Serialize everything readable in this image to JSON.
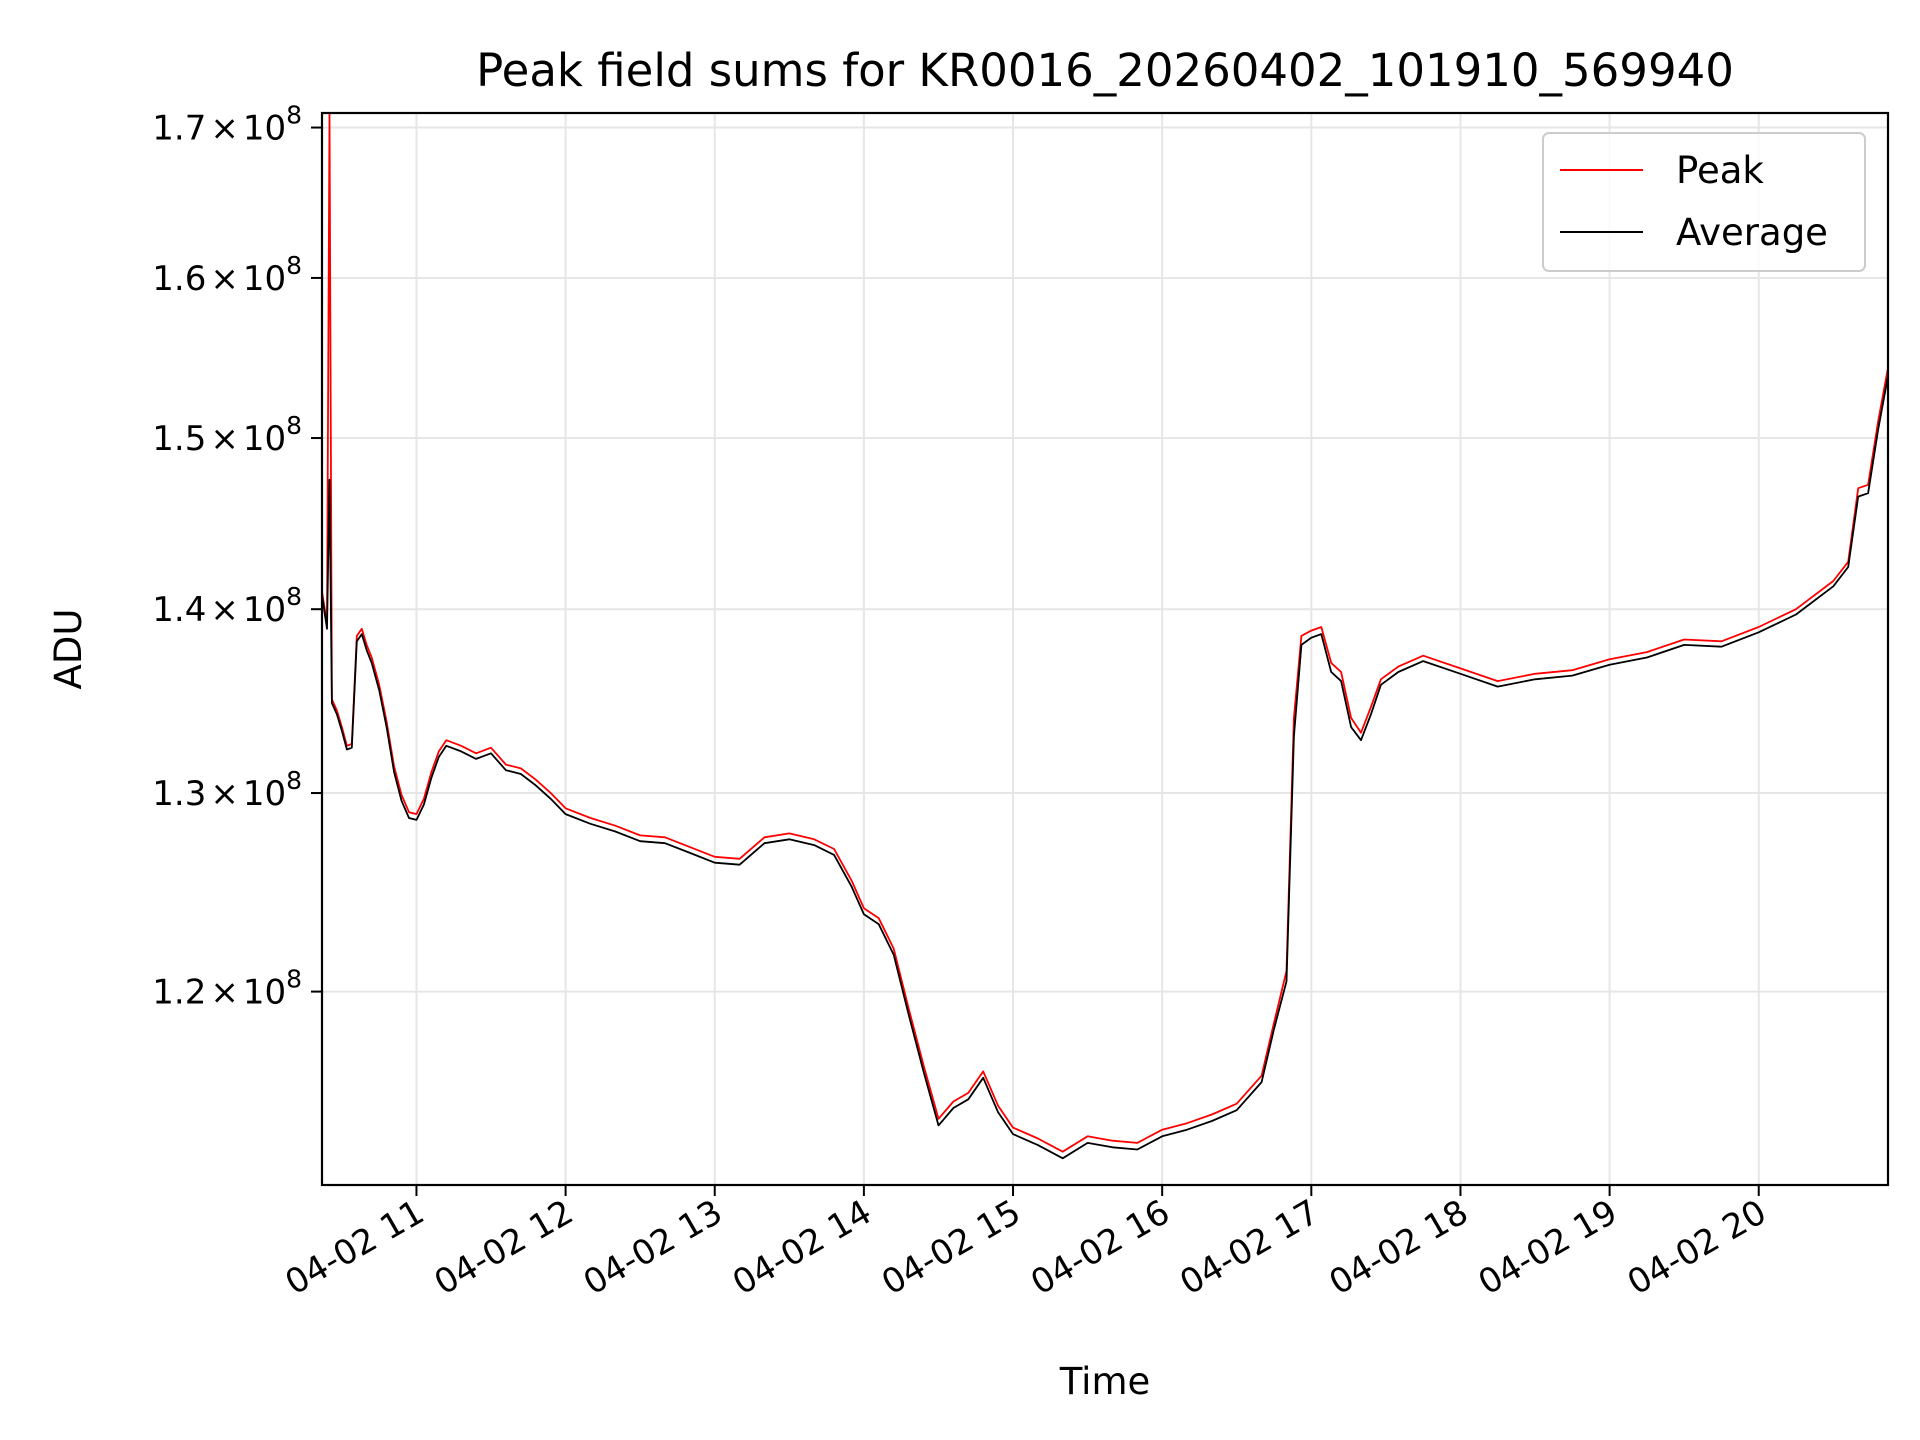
{
  "chart_data": {
    "type": "line",
    "title": "Peak field sums for KR0016_20260402_101910_569940",
    "xlabel": "Time",
    "ylabel": "ADU",
    "y_scale": "log",
    "grid": true,
    "legend_position": "top-right",
    "xlim": [
      "2026-04-02 10:22",
      "2026-04-02 20:52"
    ],
    "ylim": [
      111000000,
      171000000
    ],
    "x_ticks": [
      {
        "time": "2026-04-02 11:00",
        "label": "04-02 11"
      },
      {
        "time": "2026-04-02 12:00",
        "label": "04-02 12"
      },
      {
        "time": "2026-04-02 13:00",
        "label": "04-02 13"
      },
      {
        "time": "2026-04-02 14:00",
        "label": "04-02 14"
      },
      {
        "time": "2026-04-02 15:00",
        "label": "04-02 15"
      },
      {
        "time": "2026-04-02 16:00",
        "label": "04-02 16"
      },
      {
        "time": "2026-04-02 17:00",
        "label": "04-02 17"
      },
      {
        "time": "2026-04-02 18:00",
        "label": "04-02 18"
      },
      {
        "time": "2026-04-02 19:00",
        "label": "04-02 19"
      },
      {
        "time": "2026-04-02 20:00",
        "label": "04-02 20"
      }
    ],
    "y_ticks": [
      {
        "value": 120000000,
        "mantissa": "1.2"
      },
      {
        "value": 130000000,
        "mantissa": "1.3"
      },
      {
        "value": 140000000,
        "mantissa": "1.4"
      },
      {
        "value": 150000000,
        "mantissa": "1.5"
      },
      {
        "value": 160000000,
        "mantissa": "1.6"
      },
      {
        "value": 170000000,
        "mantissa": "1.7"
      }
    ],
    "y_tick_format": {
      "times": "×",
      "base": "10",
      "exponent": "8"
    },
    "series": [
      {
        "name": "Peak",
        "color": "#ff0000",
        "points": [
          [
            "2026-04-02 10:22",
            141000000
          ],
          [
            "2026-04-02 10:24",
            139200000
          ],
          [
            "2026-04-02 10:25",
            171000000
          ],
          [
            "2026-04-02 10:26",
            135000000
          ],
          [
            "2026-04-02 10:28",
            134400000
          ],
          [
            "2026-04-02 10:30",
            133500000
          ],
          [
            "2026-04-02 10:32",
            132500000
          ],
          [
            "2026-04-02 10:34",
            132600000
          ],
          [
            "2026-04-02 10:36",
            138500000
          ],
          [
            "2026-04-02 10:38",
            138900000
          ],
          [
            "2026-04-02 10:40",
            138000000
          ],
          [
            "2026-04-02 10:42",
            137300000
          ],
          [
            "2026-04-02 10:45",
            135800000
          ],
          [
            "2026-04-02 10:48",
            133800000
          ],
          [
            "2026-04-02 10:51",
            131400000
          ],
          [
            "2026-04-02 10:54",
            129900000
          ],
          [
            "2026-04-02 10:57",
            129000000
          ],
          [
            "2026-04-02 11:00",
            128900000
          ],
          [
            "2026-04-02 11:03",
            129700000
          ],
          [
            "2026-04-02 11:06",
            131100000
          ],
          [
            "2026-04-02 11:09",
            132200000
          ],
          [
            "2026-04-02 11:12",
            132800000
          ],
          [
            "2026-04-02 11:18",
            132500000
          ],
          [
            "2026-04-02 11:24",
            132100000
          ],
          [
            "2026-04-02 11:30",
            132400000
          ],
          [
            "2026-04-02 11:36",
            131500000
          ],
          [
            "2026-04-02 11:42",
            131300000
          ],
          [
            "2026-04-02 11:48",
            130700000
          ],
          [
            "2026-04-02 11:54",
            130000000
          ],
          [
            "2026-04-02 12:00",
            129200000
          ],
          [
            "2026-04-02 12:10",
            128700000
          ],
          [
            "2026-04-02 12:20",
            128300000
          ],
          [
            "2026-04-02 12:30",
            127800000
          ],
          [
            "2026-04-02 12:40",
            127700000
          ],
          [
            "2026-04-02 12:50",
            127200000
          ],
          [
            "2026-04-02 13:00",
            126700000
          ],
          [
            "2026-04-02 13:10",
            126600000
          ],
          [
            "2026-04-02 13:20",
            127700000
          ],
          [
            "2026-04-02 13:30",
            127900000
          ],
          [
            "2026-04-02 13:40",
            127600000
          ],
          [
            "2026-04-02 13:48",
            127100000
          ],
          [
            "2026-04-02 13:55",
            125500000
          ],
          [
            "2026-04-02 14:00",
            124100000
          ],
          [
            "2026-04-02 14:06",
            123600000
          ],
          [
            "2026-04-02 14:12",
            122100000
          ],
          [
            "2026-04-02 14:18",
            119200000
          ],
          [
            "2026-04-02 14:24",
            116500000
          ],
          [
            "2026-04-02 14:30",
            114000000
          ],
          [
            "2026-04-02 14:36",
            114800000
          ],
          [
            "2026-04-02 14:42",
            115200000
          ],
          [
            "2026-04-02 14:48",
            116200000
          ],
          [
            "2026-04-02 14:54",
            114600000
          ],
          [
            "2026-04-02 15:00",
            113600000
          ],
          [
            "2026-04-02 15:10",
            113100000
          ],
          [
            "2026-04-02 15:20",
            112500000
          ],
          [
            "2026-04-02 15:30",
            113200000
          ],
          [
            "2026-04-02 15:40",
            113000000
          ],
          [
            "2026-04-02 15:50",
            112900000
          ],
          [
            "2026-04-02 16:00",
            113500000
          ],
          [
            "2026-04-02 16:10",
            113800000
          ],
          [
            "2026-04-02 16:20",
            114200000
          ],
          [
            "2026-04-02 16:30",
            114700000
          ],
          [
            "2026-04-02 16:40",
            116000000
          ],
          [
            "2026-04-02 16:45",
            118500000
          ],
          [
            "2026-04-02 16:50",
            121000000
          ],
          [
            "2026-04-02 16:53",
            134000000
          ],
          [
            "2026-04-02 16:56",
            138500000
          ],
          [
            "2026-04-02 17:00",
            138800000
          ],
          [
            "2026-04-02 17:04",
            139000000
          ],
          [
            "2026-04-02 17:08",
            137000000
          ],
          [
            "2026-04-02 17:12",
            136500000
          ],
          [
            "2026-04-02 17:16",
            134000000
          ],
          [
            "2026-04-02 17:20",
            133200000
          ],
          [
            "2026-04-02 17:24",
            134600000
          ],
          [
            "2026-04-02 17:28",
            136100000
          ],
          [
            "2026-04-02 17:35",
            136800000
          ],
          [
            "2026-04-02 17:45",
            137400000
          ],
          [
            "2026-04-02 18:00",
            136700000
          ],
          [
            "2026-04-02 18:15",
            136000000
          ],
          [
            "2026-04-02 18:30",
            136400000
          ],
          [
            "2026-04-02 18:45",
            136600000
          ],
          [
            "2026-04-02 19:00",
            137200000
          ],
          [
            "2026-04-02 19:15",
            137600000
          ],
          [
            "2026-04-02 19:30",
            138300000
          ],
          [
            "2026-04-02 19:45",
            138200000
          ],
          [
            "2026-04-02 20:00",
            139000000
          ],
          [
            "2026-04-02 20:15",
            140000000
          ],
          [
            "2026-04-02 20:30",
            141600000
          ],
          [
            "2026-04-02 20:36",
            142700000
          ],
          [
            "2026-04-02 20:40",
            147000000
          ],
          [
            "2026-04-02 20:44",
            147200000
          ],
          [
            "2026-04-02 20:48",
            151000000
          ],
          [
            "2026-04-02 20:52",
            154300000
          ]
        ]
      },
      {
        "name": "Average",
        "color": "#000000",
        "points": [
          [
            "2026-04-02 10:22",
            140800000
          ],
          [
            "2026-04-02 10:24",
            138900000
          ],
          [
            "2026-04-02 10:25",
            147500000
          ],
          [
            "2026-04-02 10:26",
            134800000
          ],
          [
            "2026-04-02 10:28",
            134200000
          ],
          [
            "2026-04-02 10:30",
            133300000
          ],
          [
            "2026-04-02 10:32",
            132300000
          ],
          [
            "2026-04-02 10:34",
            132400000
          ],
          [
            "2026-04-02 10:36",
            138200000
          ],
          [
            "2026-04-02 10:38",
            138600000
          ],
          [
            "2026-04-02 10:40",
            137700000
          ],
          [
            "2026-04-02 10:42",
            137000000
          ],
          [
            "2026-04-02 10:45",
            135500000
          ],
          [
            "2026-04-02 10:48",
            133500000
          ],
          [
            "2026-04-02 10:51",
            131100000
          ],
          [
            "2026-04-02 10:54",
            129600000
          ],
          [
            "2026-04-02 10:57",
            128700000
          ],
          [
            "2026-04-02 11:00",
            128600000
          ],
          [
            "2026-04-02 11:03",
            129400000
          ],
          [
            "2026-04-02 11:06",
            130800000
          ],
          [
            "2026-04-02 11:09",
            131900000
          ],
          [
            "2026-04-02 11:12",
            132500000
          ],
          [
            "2026-04-02 11:18",
            132200000
          ],
          [
            "2026-04-02 11:24",
            131800000
          ],
          [
            "2026-04-02 11:30",
            132100000
          ],
          [
            "2026-04-02 11:36",
            131200000
          ],
          [
            "2026-04-02 11:42",
            131000000
          ],
          [
            "2026-04-02 11:48",
            130400000
          ],
          [
            "2026-04-02 11:54",
            129700000
          ],
          [
            "2026-04-02 12:00",
            128900000
          ],
          [
            "2026-04-02 12:10",
            128400000
          ],
          [
            "2026-04-02 12:20",
            128000000
          ],
          [
            "2026-04-02 12:30",
            127500000
          ],
          [
            "2026-04-02 12:40",
            127400000
          ],
          [
            "2026-04-02 12:50",
            126900000
          ],
          [
            "2026-04-02 13:00",
            126400000
          ],
          [
            "2026-04-02 13:10",
            126300000
          ],
          [
            "2026-04-02 13:20",
            127400000
          ],
          [
            "2026-04-02 13:30",
            127600000
          ],
          [
            "2026-04-02 13:40",
            127300000
          ],
          [
            "2026-04-02 13:48",
            126800000
          ],
          [
            "2026-04-02 13:55",
            125200000
          ],
          [
            "2026-04-02 14:00",
            123800000
          ],
          [
            "2026-04-02 14:06",
            123300000
          ],
          [
            "2026-04-02 14:12",
            121800000
          ],
          [
            "2026-04-02 14:18",
            118900000
          ],
          [
            "2026-04-02 14:24",
            116200000
          ],
          [
            "2026-04-02 14:30",
            113700000
          ],
          [
            "2026-04-02 14:36",
            114500000
          ],
          [
            "2026-04-02 14:42",
            114900000
          ],
          [
            "2026-04-02 14:48",
            115900000
          ],
          [
            "2026-04-02 14:54",
            114300000
          ],
          [
            "2026-04-02 15:00",
            113300000
          ],
          [
            "2026-04-02 15:10",
            112800000
          ],
          [
            "2026-04-02 15:20",
            112200000
          ],
          [
            "2026-04-02 15:30",
            112900000
          ],
          [
            "2026-04-02 15:40",
            112700000
          ],
          [
            "2026-04-02 15:50",
            112600000
          ],
          [
            "2026-04-02 16:00",
            113200000
          ],
          [
            "2026-04-02 16:10",
            113500000
          ],
          [
            "2026-04-02 16:20",
            113900000
          ],
          [
            "2026-04-02 16:30",
            114400000
          ],
          [
            "2026-04-02 16:40",
            115700000
          ],
          [
            "2026-04-02 16:45",
            118200000
          ],
          [
            "2026-04-02 16:50",
            120500000
          ],
          [
            "2026-04-02 16:53",
            133000000
          ],
          [
            "2026-04-02 16:56",
            138000000
          ],
          [
            "2026-04-02 17:00",
            138400000
          ],
          [
            "2026-04-02 17:04",
            138600000
          ],
          [
            "2026-04-02 17:08",
            136500000
          ],
          [
            "2026-04-02 17:12",
            136000000
          ],
          [
            "2026-04-02 17:16",
            133500000
          ],
          [
            "2026-04-02 17:20",
            132800000
          ],
          [
            "2026-04-02 17:24",
            134200000
          ],
          [
            "2026-04-02 17:28",
            135800000
          ],
          [
            "2026-04-02 17:35",
            136500000
          ],
          [
            "2026-04-02 17:45",
            137100000
          ],
          [
            "2026-04-02 18:00",
            136400000
          ],
          [
            "2026-04-02 18:15",
            135700000
          ],
          [
            "2026-04-02 18:30",
            136100000
          ],
          [
            "2026-04-02 18:45",
            136300000
          ],
          [
            "2026-04-02 19:00",
            136900000
          ],
          [
            "2026-04-02 19:15",
            137300000
          ],
          [
            "2026-04-02 19:30",
            138000000
          ],
          [
            "2026-04-02 19:45",
            137900000
          ],
          [
            "2026-04-02 20:00",
            138700000
          ],
          [
            "2026-04-02 20:15",
            139700000
          ],
          [
            "2026-04-02 20:30",
            141300000
          ],
          [
            "2026-04-02 20:36",
            142400000
          ],
          [
            "2026-04-02 20:40",
            146500000
          ],
          [
            "2026-04-02 20:44",
            146700000
          ],
          [
            "2026-04-02 20:48",
            150500000
          ],
          [
            "2026-04-02 20:52",
            153800000
          ]
        ]
      }
    ]
  }
}
